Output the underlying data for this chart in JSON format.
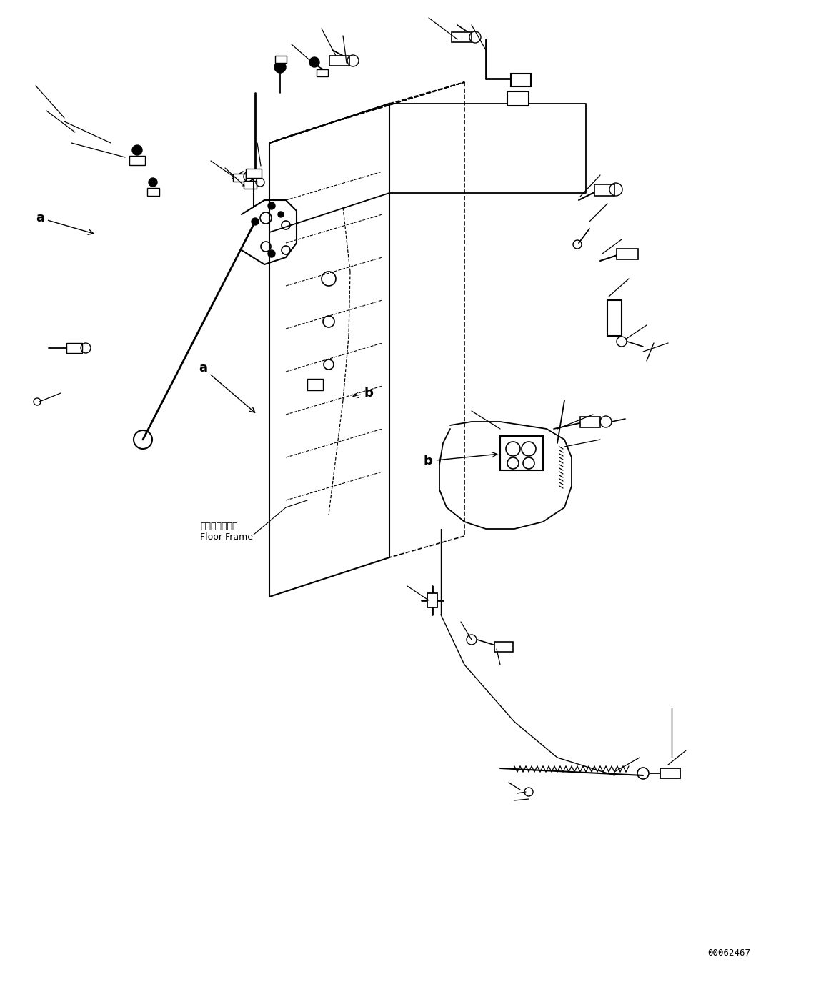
{
  "background_color": "#ffffff",
  "diagram_id": "00062467",
  "floor_frame_label_ja": "フロアフレーム",
  "floor_frame_label_en": "Floor Frame",
  "fig_width": 11.63,
  "fig_height": 13.74,
  "dpi": 100
}
